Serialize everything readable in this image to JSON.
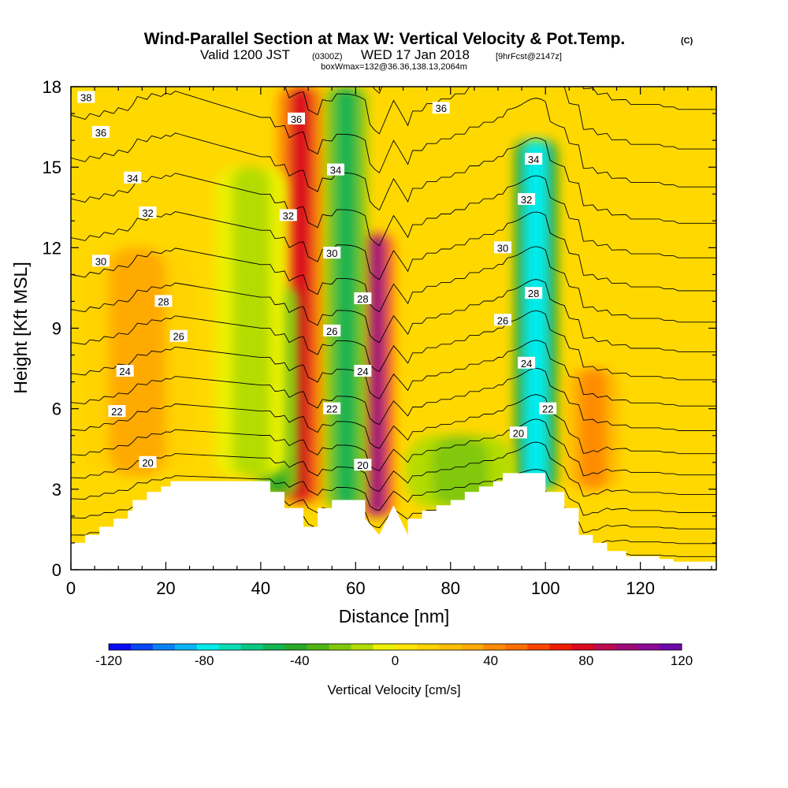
{
  "header": {
    "title": "Wind-Parallel Section at Max W: Vertical Velocity & Pot.Temp.",
    "copyright": "(C)",
    "subtitle_valid": "Valid 1200 JST",
    "subtitle_z": "(0300Z)",
    "subtitle_date": "WED 17 Jan 2018",
    "subtitle_fcst": "[9hrFcst@2147z]",
    "subtitle_box": "boxWmax=132@36.36,138.13,2064m"
  },
  "chart_data": {
    "type": "heatmap",
    "xlabel": "Distance [nm]",
    "ylabel": "Height [Kft MSL]",
    "xlim": [
      0,
      136
    ],
    "ylim": [
      0,
      18
    ],
    "x_ticks": [
      0,
      20,
      40,
      60,
      80,
      100,
      120
    ],
    "y_ticks": [
      0,
      3,
      6,
      9,
      12,
      15,
      18
    ],
    "terrain": {
      "x": [
        0,
        3,
        3,
        6,
        6,
        9,
        9,
        12,
        12,
        13,
        13,
        16,
        16,
        19,
        19,
        21,
        21,
        22,
        25,
        28,
        31,
        34,
        37,
        40,
        42,
        42,
        45,
        45,
        49,
        49,
        52,
        52,
        55,
        55,
        59,
        59,
        62,
        62,
        65,
        68,
        71,
        71,
        74,
        74,
        77,
        77,
        80,
        80,
        83,
        83,
        86,
        86,
        89,
        89,
        91,
        91,
        95,
        95,
        100,
        100,
        104,
        104,
        107,
        107,
        110,
        110,
        113,
        113,
        117,
        117,
        120,
        120,
        124,
        124,
        127,
        127,
        131,
        131,
        134,
        134,
        136
      ],
      "y": [
        1.0,
        1.0,
        1.3,
        1.3,
        1.6,
        1.6,
        1.9,
        1.9,
        2.2,
        2.2,
        2.6,
        2.6,
        2.9,
        2.9,
        3.1,
        3.1,
        3.3,
        3.3,
        3.3,
        3.3,
        3.3,
        3.3,
        3.3,
        3.3,
        3.3,
        2.9,
        2.9,
        2.3,
        2.3,
        1.6,
        1.6,
        2.3,
        2.3,
        2.6,
        2.6,
        2.6,
        2.6,
        1.9,
        1.3,
        2.4,
        1.3,
        1.9,
        1.9,
        2.2,
        2.2,
        2.4,
        2.4,
        2.6,
        2.6,
        2.9,
        2.9,
        3.1,
        3.1,
        3.3,
        3.3,
        3.6,
        3.6,
        3.6,
        3.6,
        2.9,
        2.9,
        2.3,
        2.3,
        1.3,
        1.3,
        1.0,
        1.0,
        0.7,
        0.7,
        0.5,
        0.5,
        0.5,
        0.5,
        0.4,
        0.4,
        0.3,
        0.3,
        0.3,
        0.3,
        0.3,
        0.3
      ]
    },
    "velocity_features": [
      {
        "x": 48.5,
        "y_from": 2.5,
        "y_to": 18,
        "width": 2.6,
        "value": 75
      },
      {
        "x": 64.5,
        "y_from": 2.0,
        "y_to": 12.5,
        "width": 1.9,
        "value": 100
      },
      {
        "x": 58.0,
        "y_from": 2.3,
        "y_to": 18,
        "width": 2.3,
        "value": -50
      },
      {
        "x": 43.5,
        "y_from": 2.8,
        "y_to": 10.5,
        "width": 2.3,
        "value": -45
      },
      {
        "x": 98.0,
        "y_from": 3.0,
        "y_to": 16,
        "width": 2.4,
        "value": -80
      },
      {
        "x": 110.0,
        "y_from": 3.0,
        "y_to": 7.5,
        "width": 3.0,
        "value": 45
      },
      {
        "x": 14.0,
        "y_from": 3.5,
        "y_to": 12.0,
        "width": 6.0,
        "value": 30
      },
      {
        "x": 38.0,
        "y_from": 3.5,
        "y_to": 15.0,
        "width": 4.0,
        "value": -12
      },
      {
        "x": 82.0,
        "y_from": 2.3,
        "y_to": 5.0,
        "width": 6.0,
        "value": -25
      }
    ],
    "theta_contours": [
      18,
      19,
      20,
      21,
      22,
      23,
      24,
      25,
      26,
      27,
      28,
      29,
      30,
      31,
      32,
      33,
      34,
      35,
      36,
      37,
      38
    ],
    "contour_labels": [
      {
        "text": "38",
        "x": 3.2,
        "y": 17.6
      },
      {
        "text": "36",
        "x": 6.3,
        "y": 16.3
      },
      {
        "text": "34",
        "x": 13.0,
        "y": 14.6
      },
      {
        "text": "32",
        "x": 16.2,
        "y": 13.3
      },
      {
        "text": "30",
        "x": 6.3,
        "y": 11.5
      },
      {
        "text": "28",
        "x": 19.5,
        "y": 10.0
      },
      {
        "text": "26",
        "x": 22.7,
        "y": 8.7
      },
      {
        "text": "24",
        "x": 11.4,
        "y": 7.4
      },
      {
        "text": "22",
        "x": 9.7,
        "y": 5.9
      },
      {
        "text": "20",
        "x": 16.2,
        "y": 4.0
      },
      {
        "text": "36",
        "x": 47.5,
        "y": 16.8
      },
      {
        "text": "34",
        "x": 55.8,
        "y": 14.9
      },
      {
        "text": "32",
        "x": 45.8,
        "y": 13.2
      },
      {
        "text": "30",
        "x": 55.0,
        "y": 11.8
      },
      {
        "text": "28",
        "x": 61.5,
        "y": 10.1
      },
      {
        "text": "26",
        "x": 55.0,
        "y": 8.9
      },
      {
        "text": "24",
        "x": 61.5,
        "y": 7.4
      },
      {
        "text": "22",
        "x": 55.0,
        "y": 6.0
      },
      {
        "text": "20",
        "x": 61.5,
        "y": 3.9
      },
      {
        "text": "36",
        "x": 78.0,
        "y": 17.2
      },
      {
        "text": "34",
        "x": 97.5,
        "y": 15.3
      },
      {
        "text": "32",
        "x": 96.0,
        "y": 13.8
      },
      {
        "text": "30",
        "x": 91.0,
        "y": 12.0
      },
      {
        "text": "28",
        "x": 97.5,
        "y": 10.3
      },
      {
        "text": "26",
        "x": 91.0,
        "y": 9.3
      },
      {
        "text": "24",
        "x": 96.0,
        "y": 7.7
      },
      {
        "text": "22",
        "x": 100.5,
        "y": 6.0
      },
      {
        "text": "20",
        "x": 94.3,
        "y": 5.1
      }
    ]
  },
  "colorbar": {
    "label": "Vertical Velocity [cm/s]",
    "range": [
      -120,
      120
    ],
    "tick_values": [
      "-120",
      "-80",
      "-40",
      "0",
      "40",
      "80",
      "120"
    ],
    "colors": [
      "#0a0af5",
      "#0a46f5",
      "#0a82f5",
      "#0ab4f5",
      "#00ecec",
      "#0adcb4",
      "#0ac882",
      "#14b450",
      "#28a828",
      "#50b414",
      "#82c80a",
      "#b4dc00",
      "#ecf000",
      "#ffe600",
      "#ffd200",
      "#ffbe00",
      "#ffaa00",
      "#ff8c00",
      "#ff6e00",
      "#ff4600",
      "#f01e00",
      "#dc0a1e",
      "#be0a50",
      "#a00a78",
      "#8c0a96",
      "#6e0aaa"
    ]
  }
}
